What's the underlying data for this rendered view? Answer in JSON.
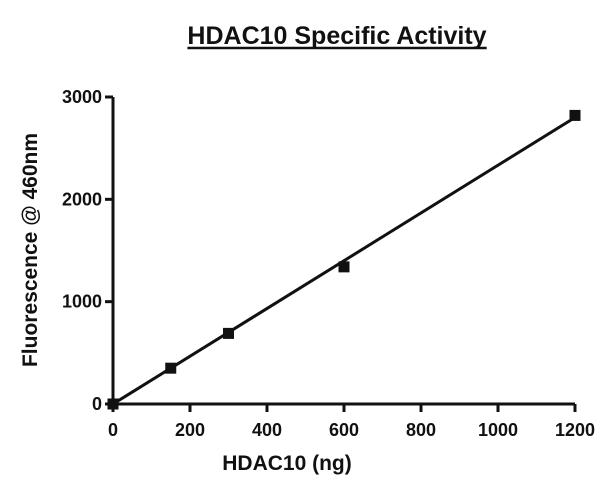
{
  "chart_data": {
    "type": "scatter",
    "title": "HDAC10 Specific Activity",
    "xlabel": "HDAC10  (ng)",
    "ylabel": "Fluorescence @ 460nm",
    "xlim": [
      0,
      1200
    ],
    "ylim": [
      0,
      3000
    ],
    "x_ticks": [
      "0",
      "200",
      "400",
      "600",
      "800",
      "1000",
      "1200"
    ],
    "y_ticks": [
      "0",
      "1000",
      "2000",
      "3000"
    ],
    "grid": false,
    "legend": "none",
    "series": [
      {
        "x": [
          0,
          150,
          300,
          600,
          1200
        ],
        "y": [
          0,
          350,
          690,
          1340,
          2820
        ],
        "marker": "square"
      }
    ],
    "fit_line": {
      "x": [
        0,
        1200
      ],
      "y": [
        0,
        2800
      ]
    },
    "colors": {
      "marks": "#111111",
      "background": "#ffffff"
    }
  }
}
